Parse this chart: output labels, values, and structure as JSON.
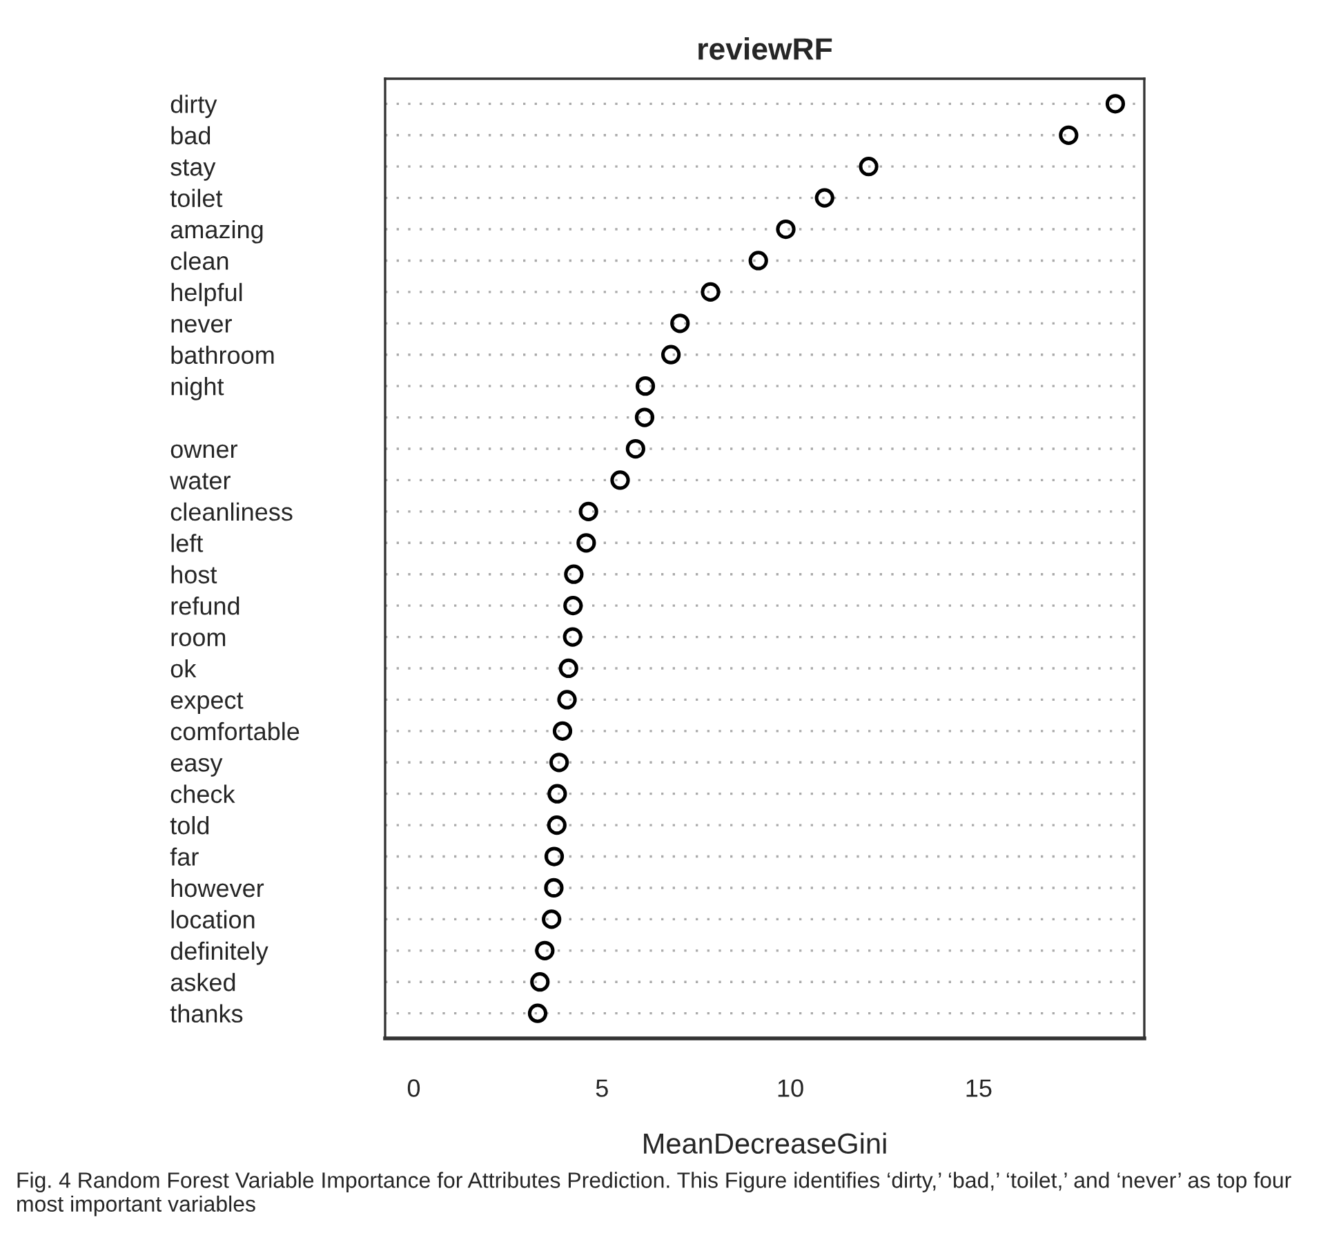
{
  "chart_data": {
    "type": "scatter",
    "orientation": "horizontal",
    "title": "reviewRF",
    "xlabel": "MeanDecreaseGini",
    "categories": [
      "dirty",
      "bad",
      "stay",
      "toilet",
      "amazing",
      "clean",
      "helpful",
      "never",
      "bathroom",
      "night",
      null,
      "owner",
      "water",
      "cleanliness",
      "left",
      "host",
      "refund",
      "room",
      "ok",
      "expect",
      "comfortable",
      "easy",
      "check",
      "told",
      "far",
      "however",
      "location",
      "definitely",
      "asked",
      "thanks"
    ],
    "values": [
      18.63,
      17.39,
      12.08,
      10.91,
      9.88,
      9.15,
      7.88,
      7.07,
      6.83,
      6.15,
      6.13,
      5.89,
      5.48,
      4.64,
      4.58,
      4.25,
      4.23,
      4.22,
      4.11,
      4.07,
      3.95,
      3.86,
      3.81,
      3.8,
      3.73,
      3.72,
      3.66,
      3.48,
      3.35,
      3.29
    ],
    "color": "#000000",
    "marker": "circle",
    "grid": "y",
    "xlim": [
      -0.76,
      19.4
    ],
    "xticks": [
      0,
      5,
      10,
      15
    ],
    "annotations": [
      "Fig. 4 Random Forest Variable Importance for Attributes Prediction. This Figure identifies ‘dirty,’ ‘bad,’ ‘toilet,’ and ‘never’ as top four most important variables"
    ]
  }
}
